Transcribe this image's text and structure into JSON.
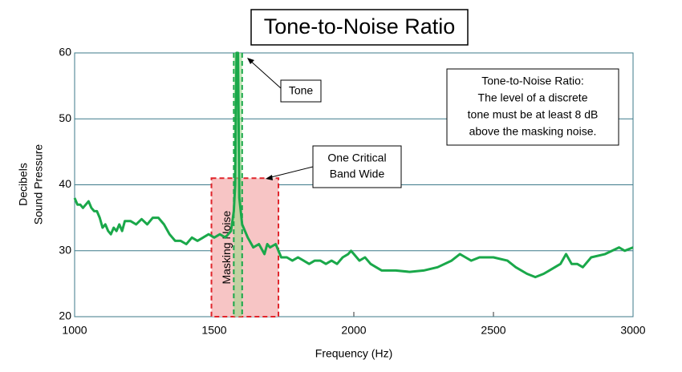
{
  "chart_data": {
    "type": "line",
    "title": "Tone-to-Noise Ratio",
    "xlabel": "Frequency (Hz)",
    "ylabel": [
      "Decibels",
      "Sound Pressure"
    ],
    "xlim": [
      1000,
      3000
    ],
    "ylim": [
      20,
      60
    ],
    "xticks": [
      1000,
      1500,
      2000,
      2500,
      3000
    ],
    "yticks": [
      20,
      30,
      40,
      50,
      60
    ],
    "grid": true,
    "x": [
      1000,
      1010,
      1020,
      1030,
      1040,
      1050,
      1060,
      1070,
      1080,
      1090,
      1100,
      1110,
      1120,
      1130,
      1140,
      1150,
      1160,
      1170,
      1180,
      1200,
      1220,
      1240,
      1260,
      1280,
      1300,
      1320,
      1340,
      1360,
      1380,
      1400,
      1420,
      1440,
      1460,
      1480,
      1500,
      1520,
      1540,
      1560,
      1570,
      1575,
      1580,
      1585,
      1590,
      1600,
      1610,
      1620,
      1640,
      1660,
      1680,
      1690,
      1700,
      1720,
      1740,
      1760,
      1780,
      1800,
      1820,
      1840,
      1860,
      1880,
      1900,
      1920,
      1940,
      1960,
      1980,
      1990,
      2000,
      2020,
      2040,
      2060,
      2080,
      2100,
      2150,
      2200,
      2250,
      2300,
      2350,
      2380,
      2400,
      2420,
      2450,
      2500,
      2550,
      2580,
      2620,
      2650,
      2680,
      2700,
      2740,
      2760,
      2780,
      2800,
      2820,
      2850,
      2900,
      2950,
      2970,
      3000
    ],
    "series": [
      {
        "name": "Sound pressure",
        "color": "#1aa84a",
        "values": [
          38,
          37,
          37,
          36.5,
          37,
          37.5,
          36.5,
          36,
          36,
          35,
          33.5,
          34,
          33,
          32.5,
          33.5,
          33,
          34,
          33,
          34.5,
          34.5,
          34,
          34.8,
          34,
          35,
          35,
          34,
          32.5,
          31.5,
          31.5,
          31,
          32,
          31.5,
          32,
          32.5,
          32,
          32.5,
          32,
          33,
          36,
          40,
          60,
          60,
          38,
          34,
          33,
          32,
          30.5,
          31,
          29.5,
          31,
          30.5,
          31,
          29,
          29,
          28.5,
          29,
          28.5,
          28,
          28.5,
          28.5,
          28,
          28.5,
          28,
          29,
          29.5,
          30,
          29.5,
          28.5,
          29,
          28,
          27.5,
          27,
          27,
          26.8,
          27,
          27.5,
          28.5,
          29.5,
          29,
          28.5,
          29,
          29,
          28.5,
          27.5,
          26.5,
          26,
          26.5,
          27,
          28,
          29.5,
          28,
          28,
          27.5,
          29,
          29.5,
          30.5,
          30,
          30.5
        ]
      }
    ],
    "masking_band": {
      "label": "Masking Noise",
      "x": [
        1490,
        1730
      ],
      "top": 41,
      "color": "#e0242a"
    },
    "tone_band": {
      "x": [
        1570,
        1600
      ],
      "color": "#1aa84a"
    },
    "annotations": [
      {
        "text": [
          "Tone"
        ]
      },
      {
        "text": [
          "One Critical",
          "Band Wide"
        ]
      },
      {
        "text": [
          "Tone-to-Noise Ratio:",
          "The level of a discrete",
          "tone must be at least 8 dB",
          "above the masking noise."
        ]
      }
    ]
  }
}
